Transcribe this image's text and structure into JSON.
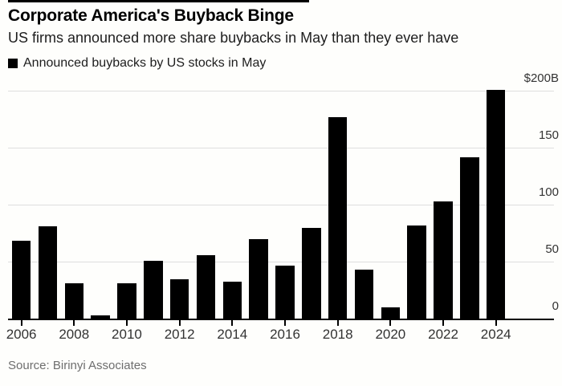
{
  "header": {
    "title": "Corporate America's Buyback Binge",
    "subtitle": "US firms announced more share buybacks in May than they ever have"
  },
  "legend": {
    "label": "Announced buybacks by US stocks in May",
    "swatch_color": "#000000"
  },
  "source": "Source: Birinyi Associates",
  "colors": {
    "bar": "#000000",
    "gridline": "#dedede",
    "baseline": "#000000",
    "tick": "#000000",
    "axis_label": "#333333",
    "top_rule": "#000000"
  },
  "chart_data": {
    "type": "bar",
    "title": "Corporate America's Buyback Binge",
    "subtitle": "US firms announced more share buybacks in May than they ever have",
    "legend": "Announced buybacks by US stocks in May",
    "legend_position": "top-left",
    "categories": [
      "2006",
      "2007",
      "2008",
      "2009",
      "2010",
      "2011",
      "2012",
      "2013",
      "2014",
      "2015",
      "2016",
      "2017",
      "2018",
      "2019",
      "2020",
      "2021",
      "2022",
      "2023",
      "2024"
    ],
    "values": [
      69,
      81,
      31,
      3,
      31,
      51,
      35,
      56,
      33,
      70,
      47,
      80,
      177,
      43,
      10,
      82,
      103,
      142,
      201
    ],
    "unit": "USD billions",
    "ylim": [
      0,
      210
    ],
    "y_axis_side": "right",
    "grid": true,
    "yticks": [
      {
        "label": "$200B",
        "value": 200
      },
      {
        "label": "150",
        "value": 150
      },
      {
        "label": "100",
        "value": 100
      },
      {
        "label": "50",
        "value": 50
      },
      {
        "label": "0",
        "value": 0
      }
    ],
    "xticks": [
      "2006",
      "2008",
      "2010",
      "2012",
      "2014",
      "2016",
      "2018",
      "2020",
      "2022",
      "2024"
    ],
    "source": "Source: Birinyi Associates"
  }
}
